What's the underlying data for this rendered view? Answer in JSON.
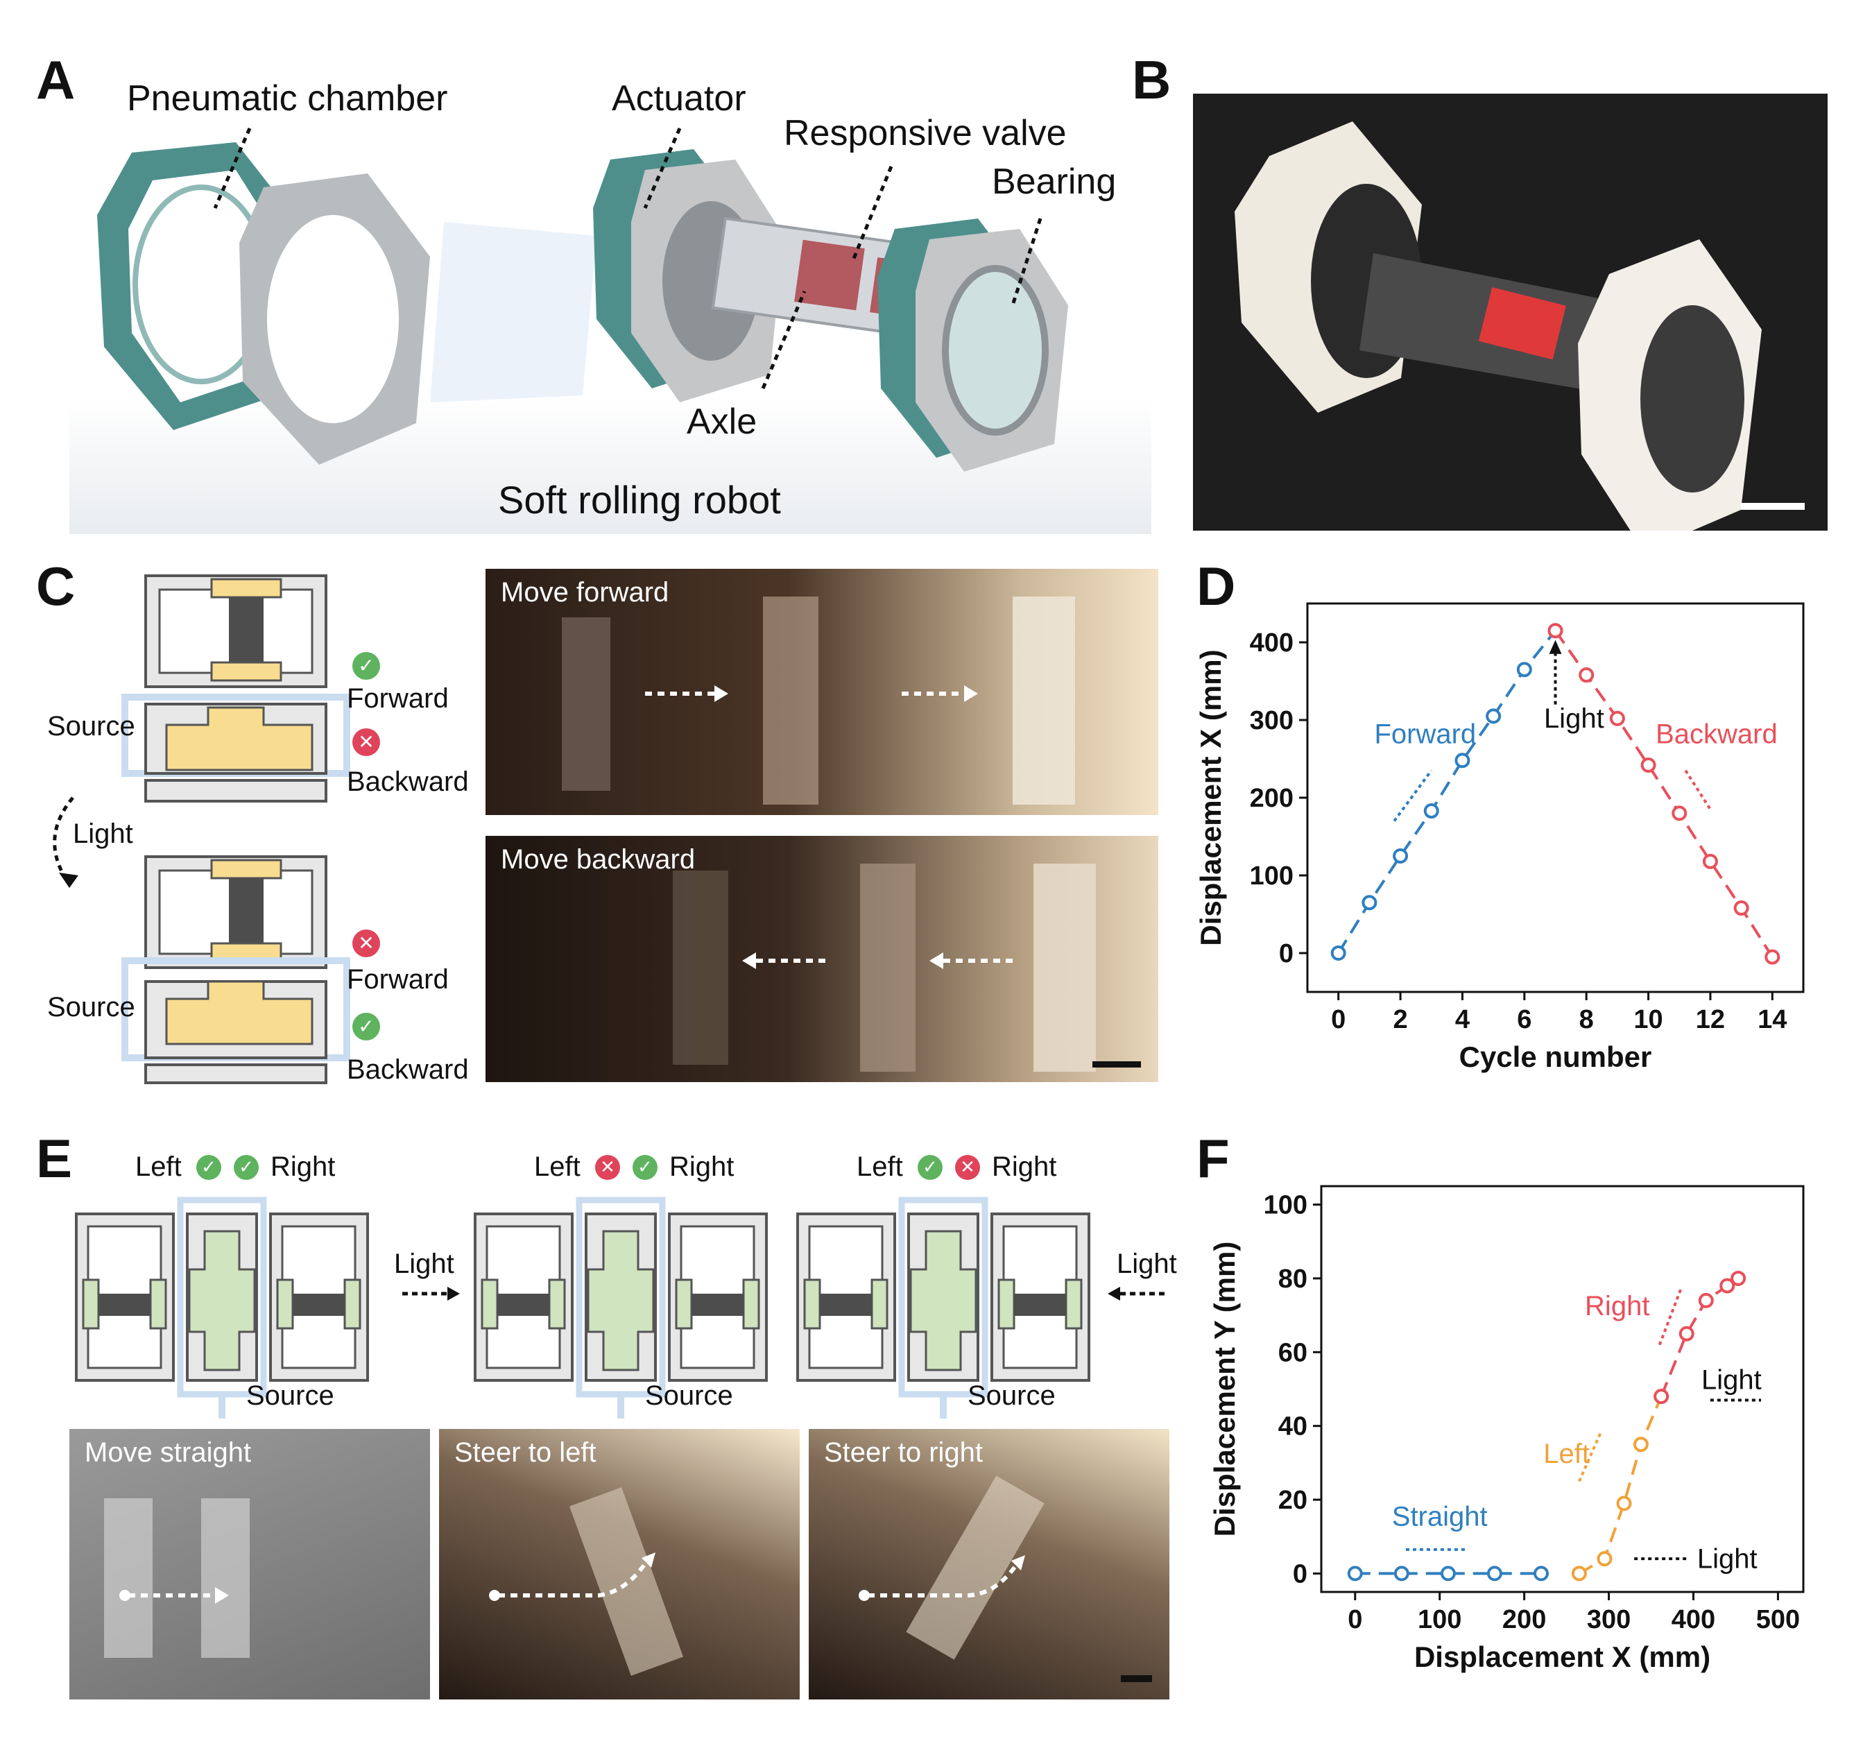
{
  "panels": {
    "A": {
      "letter": "A",
      "labels": {
        "pneumatic_chamber": "Pneumatic chamber",
        "actuator": "Actuator",
        "responsive_valve": "Responsive valve",
        "bearing": "Bearing",
        "axle": "Axle",
        "caption": "Soft rolling robot"
      },
      "colors": {
        "chamber": "#4e8f8c",
        "frame": "#b9bcbe",
        "valve": "#b25a5f"
      }
    },
    "B": {
      "letter": "B"
    },
    "C": {
      "letter": "C",
      "top": {
        "source": "Source",
        "forward": "Forward",
        "backward": "Backward"
      },
      "bottom": {
        "source": "Source",
        "forward": "Forward",
        "backward": "Backward"
      },
      "light": "Light",
      "photo_forward_title": "Move forward",
      "photo_backward_title": "Move backward",
      "colors": {
        "chamber": "#f8dc8f",
        "check": "#5fb35f",
        "cross": "#e0445a",
        "outline": "#c9dcf0"
      }
    },
    "D": {
      "letter": "D"
    },
    "E": {
      "letter": "E",
      "diagrams": [
        {
          "left": "Left",
          "right": "Right",
          "source": "Source",
          "left_ok": true,
          "right_ok": true
        },
        {
          "left": "Left",
          "right": "Right",
          "source": "Source",
          "left_ok": false,
          "right_ok": true
        },
        {
          "left": "Left",
          "right": "Right",
          "source": "Source",
          "left_ok": true,
          "right_ok": false
        }
      ],
      "light_left": "Light",
      "light_right": "Light",
      "photo_titles": [
        "Move straight",
        "Steer to left",
        "Steer to right"
      ],
      "colors": {
        "chamber": "#cfe4bf"
      }
    },
    "F": {
      "letter": "F"
    }
  },
  "chart_data": [
    {
      "panel": "D",
      "type": "line",
      "xlabel": "Cycle number",
      "ylabel": "Displacement X (mm)",
      "xlim": [
        -1,
        15
      ],
      "ylim": [
        -50,
        450
      ],
      "xticks": [
        0,
        2,
        4,
        6,
        8,
        10,
        12,
        14
      ],
      "yticks": [
        0,
        100,
        200,
        300,
        400
      ],
      "series": [
        {
          "color": "#2f7fbf",
          "x": [
            0,
            1,
            2,
            3,
            4,
            5,
            6,
            7
          ],
          "y": [
            0,
            65,
            125,
            183,
            248,
            305,
            365,
            415
          ]
        },
        {
          "color": "#e8505b",
          "x": [
            7,
            8,
            9,
            10,
            11,
            12,
            13,
            14
          ],
          "y": [
            415,
            358,
            302,
            242,
            180,
            118,
            58,
            -5
          ]
        }
      ],
      "annotations": [
        {
          "text": "Forward",
          "color": "#2f7fbf"
        },
        {
          "text": "Light",
          "color": "#111111"
        },
        {
          "text": "Backward",
          "color": "#e8505b"
        }
      ]
    },
    {
      "panel": "F",
      "type": "line",
      "xlabel": "Displacement X (mm)",
      "ylabel": "Displacement Y (mm)",
      "xlim": [
        -40,
        530
      ],
      "ylim": [
        -5,
        105
      ],
      "xticks": [
        0,
        100,
        200,
        300,
        400,
        500
      ],
      "yticks": [
        0,
        20,
        40,
        60,
        80,
        100
      ],
      "series": [
        {
          "color": "#2f7fbf",
          "x": [
            0,
            55,
            110,
            165,
            220
          ],
          "y": [
            0,
            0,
            0,
            0,
            0
          ]
        },
        {
          "color": "#f0a23a",
          "x": [
            265,
            295,
            318,
            338,
            362
          ],
          "y": [
            0,
            4,
            19,
            35,
            48
          ]
        },
        {
          "color": "#e8505b",
          "x": [
            362,
            392,
            415,
            440,
            453
          ],
          "y": [
            48,
            65,
            74,
            78,
            80
          ]
        }
      ],
      "annotations": [
        {
          "text": "Straight",
          "color": "#2f7fbf"
        },
        {
          "text": "Left",
          "color": "#f0a23a"
        },
        {
          "text": "Right",
          "color": "#e8505b"
        },
        {
          "text": "Light",
          "color": "#111111"
        },
        {
          "text": "Light",
          "color": "#111111"
        }
      ]
    }
  ]
}
